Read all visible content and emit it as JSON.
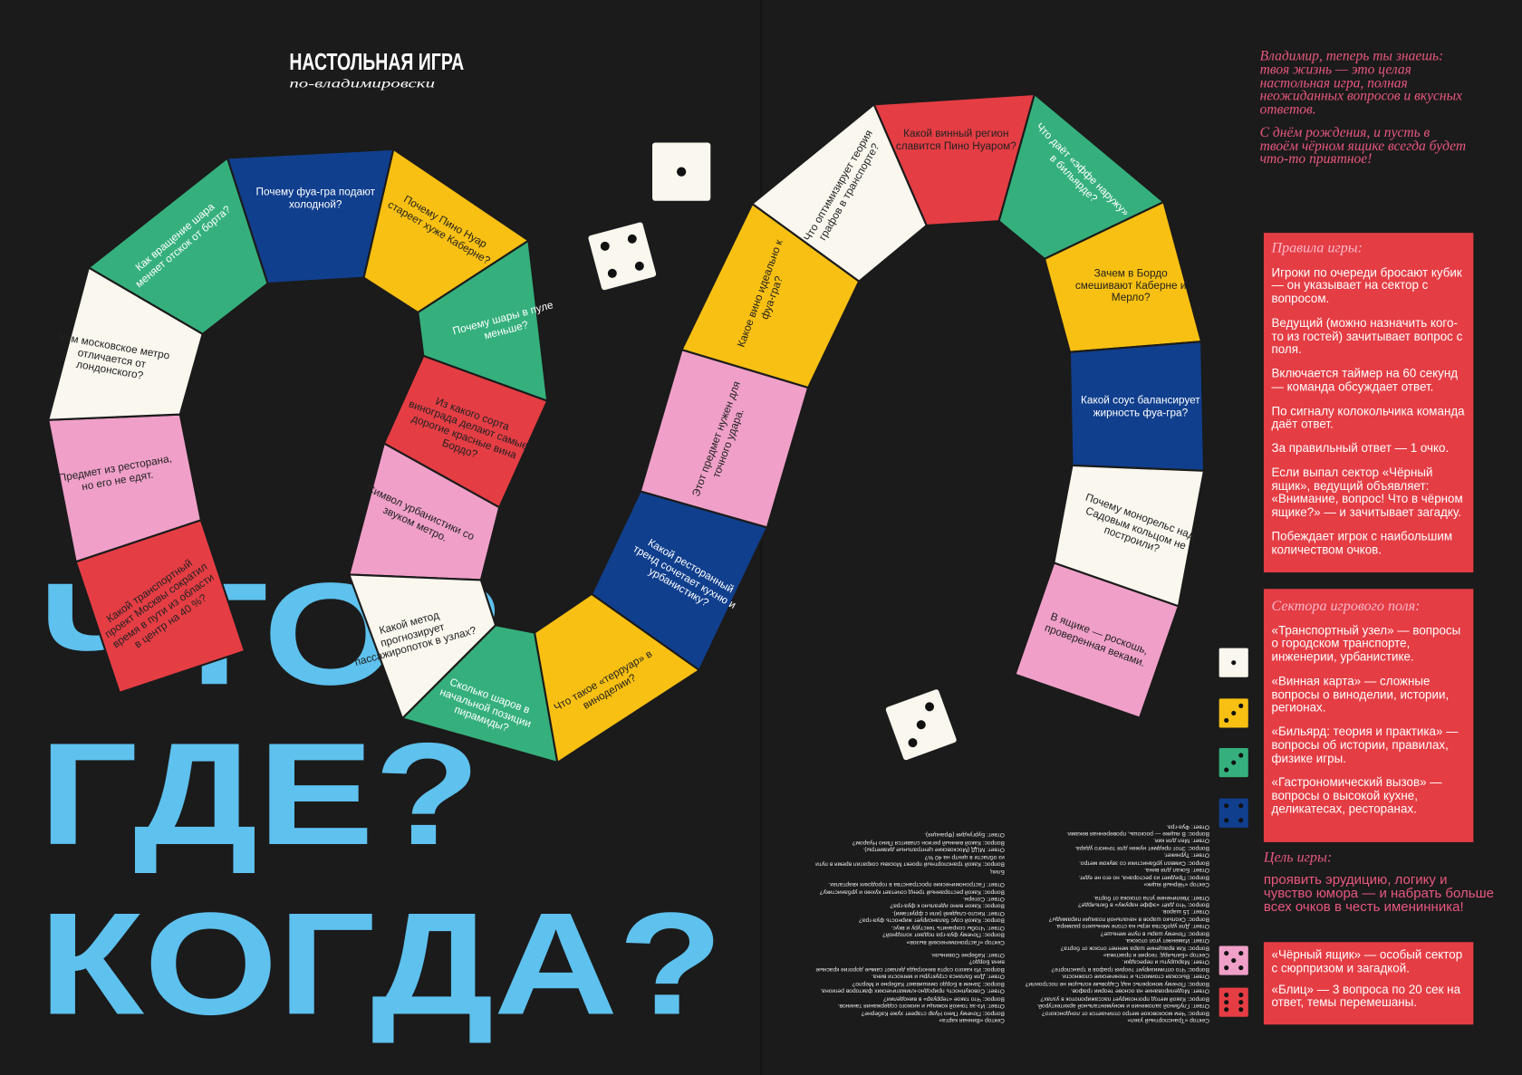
{
  "header": {
    "title": "НАСТОЛЬНАЯ ИГРА",
    "subtitle": "по-владимировски"
  },
  "big_title": [
    "ЧТО?",
    "ГДЕ?",
    "КОГДА?"
  ],
  "greeting": [
    "Владимир, теперь ты знаешь: твоя жизнь — это целая настольная игра, полная неожиданных вопросов и вкусных ответов.",
    "С днём рождения, и пусть в твоём чёрном ящике всегда будет что-то приятное!"
  ],
  "board": {
    "cells": [
      {
        "text": "Какой транспортный проект Москвы сократил время в пути из области в центр на 40 %?",
        "color": "#e53d44"
      },
      {
        "text": "Предмет из ресторана, но его не едят.",
        "color": "#f0a0c8"
      },
      {
        "text": "Чем московское метро отличается от лондонского?",
        "color": "#faf7ef"
      },
      {
        "text": "Как вращение шара меняет отскок от борта?",
        "color": "#35b07d"
      },
      {
        "text": "Почему фуа-гра подают холодной?",
        "color": "#103f8e"
      },
      {
        "text": "Почему Пино Нуар стареет хуже Каберне?",
        "color": "#f8c012"
      },
      {
        "text": "Почему шары в пуле меньше?",
        "color": "#35b07d"
      },
      {
        "text": "Из какого сорта винограда делают самые дорогие красные вина Бордо?",
        "color": "#e53d44"
      },
      {
        "text": "Символ урбанистики со звуком метро.",
        "color": "#f0a0c8"
      },
      {
        "text": "Какой метод прогнозирует пассажиропоток в узлах?",
        "color": "#faf7ef"
      },
      {
        "text": "Сколько шаров в начальной позиции пирамиды?",
        "color": "#35b07d"
      },
      {
        "text": "Что такое «терруар» в виноделии?",
        "color": "#f8c012"
      },
      {
        "text": "Какой ресторанный тренд сочетает кухню и урбанистику?",
        "color": "#103f8e"
      },
      {
        "text": "Этот предмет нужен для точного удара.",
        "color": "#f0a0c8"
      },
      {
        "text": "Какое вино идеально к фуа-гра?",
        "color": "#f8c012"
      },
      {
        "text": "Что оптимизирует теория графов в транспорте?",
        "color": "#faf7ef"
      },
      {
        "text": "Какой винный регион славится Пино Нуаром?",
        "color": "#e53d44"
      },
      {
        "text": "Что даёт «эффе наружу» в бильярде?",
        "color": "#35b07d"
      },
      {
        "text": "Зачем в Бордо смешивают Каберне и Мерло?",
        "color": "#f8c012"
      },
      {
        "text": "Какой соус балансирует жирность фуа-гра?",
        "color": "#103f8e"
      },
      {
        "text": "Почему монорельс над Садовым кольцом не построили?",
        "color": "#faf7ef"
      },
      {
        "text": "В ящике — роскошь, проверенная веками.",
        "color": "#f0a0c8"
      }
    ]
  },
  "rules": {
    "title": "Правила игры:",
    "items": [
      "Игроки по очереди бросают кубик — он указывает на сектор с вопросом.",
      "Ведущий (можно назначить кого-то из гостей) зачитывает вопрос с поля.",
      "Включается таймер на 60 секунд — команда обсуждает ответ.",
      "По сигналу колокольчика команда даёт ответ.",
      "За правильный ответ — 1 очко.",
      "Если выпал сектор «Чёрный ящик», ведущий объявляет: «Внимание, вопрос! Что в чёрном ящике?» — и зачитывает загадку.",
      "Побеждает игрок с наибольшим количеством очков."
    ]
  },
  "sectors": {
    "title": "Сектора игрового поля:",
    "items": [
      "«Транспортный узел» — вопросы о городском транспорте, инженерии, урбанистике.",
      "«Винная карта» — сложные вопросы о виноделии, истории, регионах.",
      "«Бильярд: теория и практика» — вопросы об истории, правилах, физике игры.",
      "«Гастрономический вызов» — вопросы о высокой кухне, деликатесах, ресторанах."
    ]
  },
  "goal": {
    "title": "Цель игры:",
    "text": "проявить эрудицию, логику и чувство юмора — и набрать больше всех очков в честь именинника!"
  },
  "extra": {
    "items": [
      "«Чёрный ящик» — особый сектор с сюрпризом и загадкой.",
      "«Блиц» — 3 вопроса по 20 сек на ответ, темы перемешаны."
    ]
  },
  "answers": {
    "columns": [
      [
        "Сектор «Транспортный узел»",
        "Вопрос: Чем московское метро отличается от лондонского?",
        "Ответ: Глубиной заложения и монументальной архитектурой.",
        "Вопрос: Какой метод прогнозирует пассажиропоток в узлах?",
        "Ответ: Моделирование на основе теории графов.",
        "Вопрос: Почему монорельс над Садовым кольцом не построили?",
        "Ответ: Высокая стоимость и технические сложности.",
        "Вопрос: Что оптимизирует теория графов в транспорте?",
        "Ответ: Маршруты и пересадки.",
        "Сектор «Бильярд: теория и практика»",
        "Вопрос: Как вращение шара меняет отскок от борта?",
        "Ответ: Изменяет угол отскока.",
        "Вопрос: Почему шары в пуле меньше?",
        "Ответ: Для удобства игры на столе меньшего размера.",
        "Вопрос: Сколько шаров в начальной позиции пирамиды?",
        "Ответ: 15 шаров.",
        "Вопрос: Что даёт «эффе наружу» в бильярде?",
        "Ответ: Увеличение угла отскока от борта.",
        "Сектор «Чёрный ящик»",
        "Вопрос: Предмет из ресторана, но его не едят.",
        "Ответ: Бокал для вина.",
        "Вопрос: Символ урбанистики со звуком метро.",
        "Ответ: Турникет.",
        "Вопрос: Этот предмет нужен для точного удара.",
        "Ответ: Мел для кия.",
        "Вопрос: В ящике — роскошь, проверенная веками.",
        "Ответ: Фуа-гра."
      ],
      [
        "Сектор «Винная карта»",
        "Вопрос: Почему Пино Нуар стареет хуже Каберне?",
        "Ответ: Из-за тонкой кожицы и низкого содержания танинов.",
        "Вопрос: Что такое «терруар» в виноделии?",
        "Ответ: Совокупность природно-климатических факторов региона.",
        "Вопрос: Зачем в Бордо смешивают Каберне и Мерло?",
        "Ответ: Для баланса структуры и мягкости вина.",
        "Вопрос: Из какого сорта винограда делают самые дорогие красные вина Бордо?",
        "Ответ: Каберне Совиньон.",
        "Сектор «Гастрономический вызов»",
        "Вопрос: Почему фуа-гра подают холодной?",
        "Ответ: Чтобы сохранить текстуру и вкус.",
        "Вопрос: Какой соус балансирует жирность фуа-гра?",
        "Ответ: Кисло-сладкий (или с фруктами).",
        "Вопрос: Какое вино идеально к фуа-гра?",
        "Ответ: Сотерн.",
        "Вопрос: Какой ресторанный тренд сочетает кухню и урбанистику?",
        "Ответ: Гастрономические пространства в городских кварталах.",
        "Блиц",
        "Вопрос: Какой транспортный проект Москвы сократил время в пути из области в центр на 40 %?",
        "Ответ: МЦД (Московские центральные диаметры).",
        "Вопрос: Какой винный регион славится Пино Нуаром?",
        "Ответ: Бургундия (Франция)."
      ]
    ]
  }
}
